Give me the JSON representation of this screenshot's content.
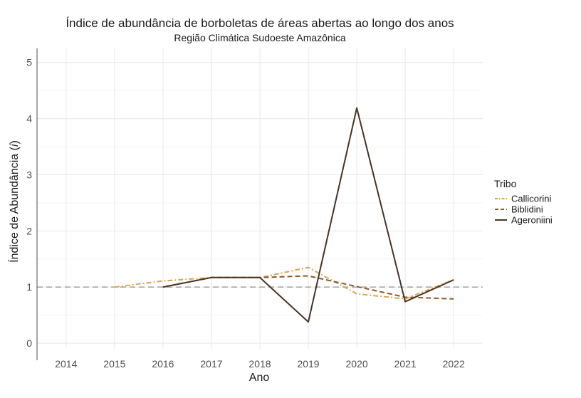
{
  "chart_data": {
    "type": "line",
    "title": "Índice de abundância de borboletas de áreas abertas ao longo dos anos",
    "subtitle": "Região Climática Sudoeste Amazônica",
    "xlabel": "Ano",
    "ylabel_main": "Índice de Abundância (",
    "ylabel_italic": "i",
    "ylabel_close": ")",
    "x_ticks": [
      "2014",
      "2015",
      "2016",
      "2017",
      "2018",
      "2019",
      "2020",
      "2021",
      "2022"
    ],
    "y_ticks": [
      "0",
      "1",
      "2",
      "3",
      "4",
      "5"
    ],
    "xlim": [
      2013.4,
      2022.6
    ],
    "ylim": [
      -0.1,
      5.25
    ],
    "grid": true,
    "reference_line": {
      "y": 1,
      "style": "dashed",
      "color": "#a6a6a6"
    },
    "legend": {
      "title": "Tribo",
      "position": "right",
      "entries": [
        "Callicorini",
        "Biblidini",
        "Ageroniini"
      ]
    },
    "series": [
      {
        "name": "Callicorini",
        "color": "#d9a54f",
        "dash": "dotdash",
        "points": [
          [
            2015,
            1.0
          ],
          [
            2016,
            1.11
          ],
          [
            2017,
            1.17
          ],
          [
            2018,
            1.17
          ],
          [
            2019,
            1.35
          ],
          [
            2020,
            0.88
          ],
          [
            2021,
            0.79
          ],
          [
            2022,
            1.13
          ]
        ]
      },
      {
        "name": "Biblidini",
        "color": "#8b5a2b",
        "dash": "dashed",
        "points": [
          [
            2016,
            1.0
          ],
          [
            2017,
            1.17
          ],
          [
            2018,
            1.17
          ],
          [
            2019,
            1.2
          ],
          [
            2021,
            0.82
          ],
          [
            2022,
            0.79
          ]
        ]
      },
      {
        "name": "Ageroniini",
        "color": "#4a3321",
        "dash": "solid",
        "points": [
          [
            2016,
            1.0
          ],
          [
            2017,
            1.17
          ],
          [
            2018,
            1.17
          ],
          [
            2019,
            0.38
          ],
          [
            2020,
            4.19
          ],
          [
            2021,
            0.74
          ],
          [
            2022,
            1.13
          ]
        ]
      }
    ]
  }
}
